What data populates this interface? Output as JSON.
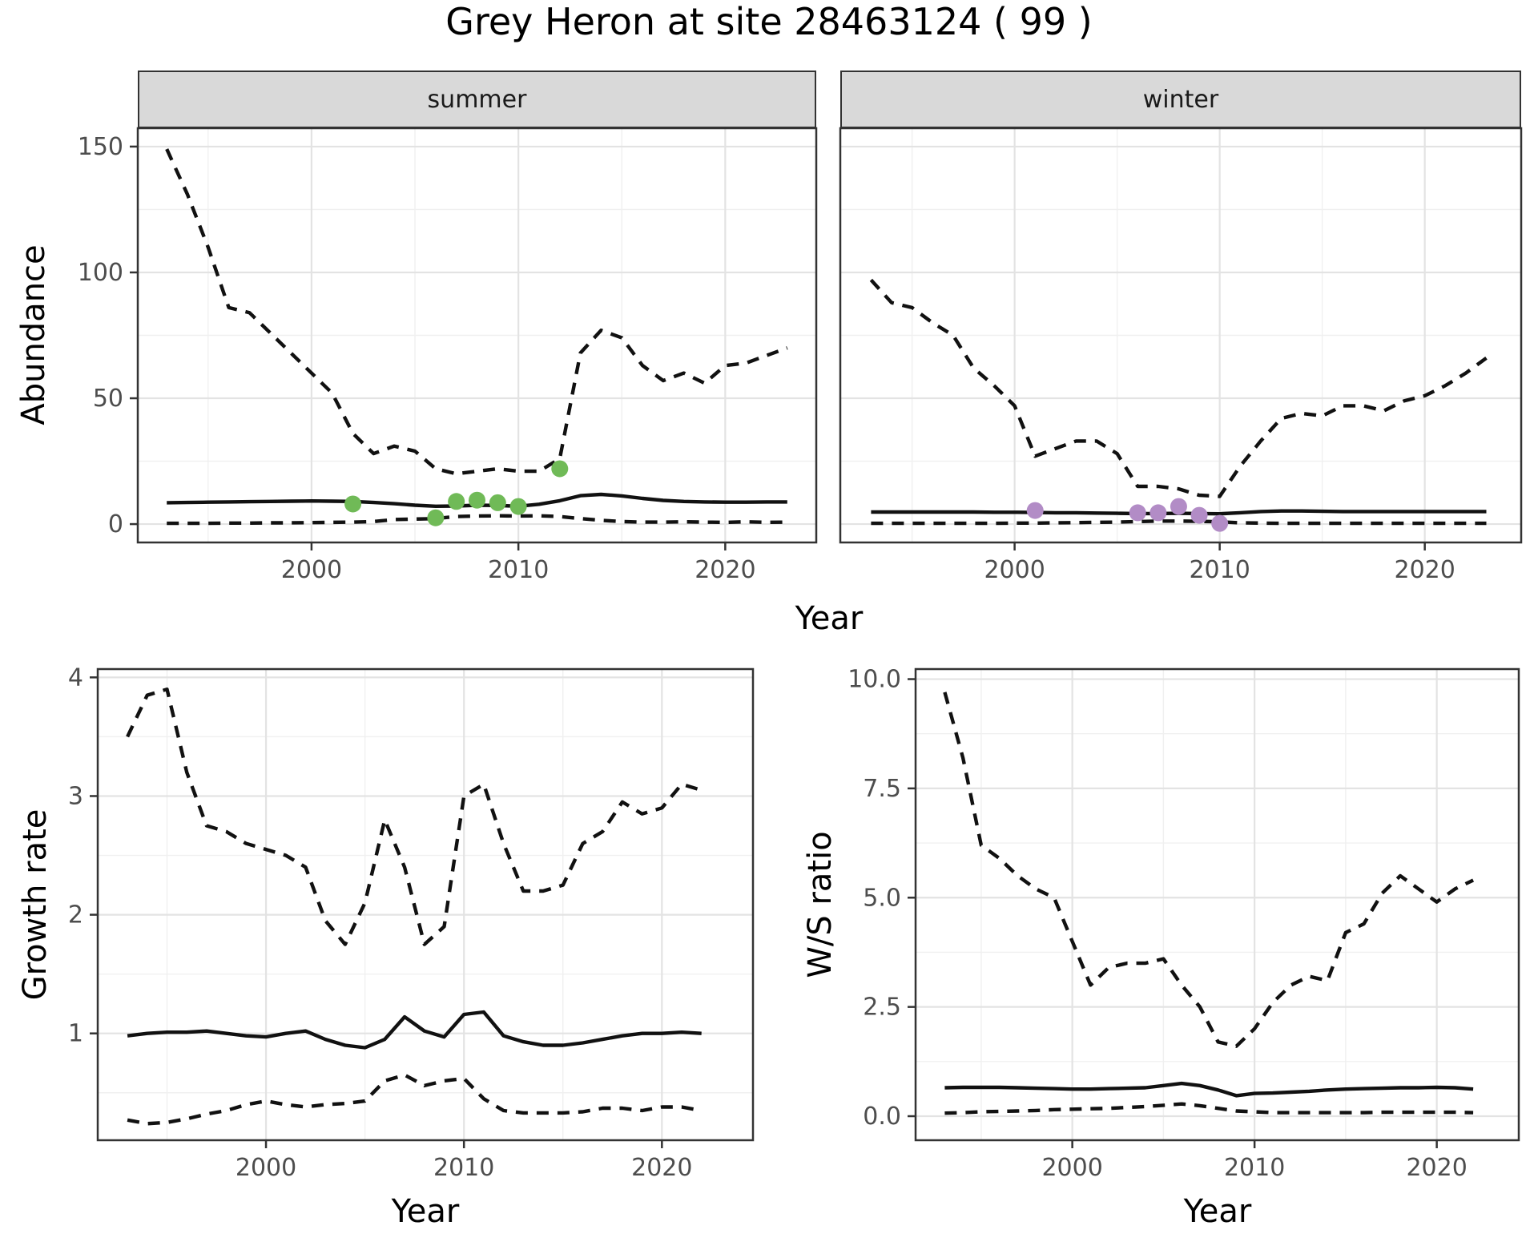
{
  "figure": {
    "title": "Grey Heron at site 28463124 ( 99 )",
    "top_xlabel": "Year",
    "line_color": "#111111",
    "grid_major_color": "#e3e3e3",
    "grid_minor_color": "#f0f0f0",
    "border_color": "#333333",
    "tick_label_color": "#4d4d4d",
    "strip_bg_color": "#d9d9d9",
    "point_color_summer": "#70ba57",
    "point_color_winter": "#b28cc6"
  },
  "chart_data": [
    {
      "id": "abundance-summer",
      "type": "line",
      "facet_label": "summer",
      "ylabel": "Abundance",
      "xlabel": "Year",
      "xlim": [
        1991.6,
        2024.4
      ],
      "ylim": [
        -7.3,
        157.3
      ],
      "xticks": [
        2000,
        2010,
        2020
      ],
      "xtick_labels": [
        "2000",
        "2010",
        "2020"
      ],
      "xminor": [
        1995,
        2005,
        2015
      ],
      "yticks": [
        0,
        50,
        100,
        150
      ],
      "ytick_labels": [
        "0",
        "50",
        "100",
        "150"
      ],
      "yminor": [
        25,
        75,
        125
      ],
      "x": [
        1993,
        1994,
        1995,
        1996,
        1997,
        1998,
        1999,
        2000,
        2001,
        2002,
        2003,
        2004,
        2005,
        2006,
        2007,
        2008,
        2009,
        2010,
        2011,
        2012,
        2013,
        2014,
        2015,
        2016,
        2017,
        2018,
        2019,
        2020,
        2021,
        2022,
        2023
      ],
      "series": [
        {
          "name": "upper-ci",
          "style": "dashed",
          "values": [
            149,
            131,
            110,
            86,
            84,
            76,
            68,
            60,
            52,
            36,
            28,
            31,
            29,
            22,
            20,
            21,
            22,
            21,
            21,
            26,
            68,
            77,
            74,
            63,
            57,
            60,
            56,
            63,
            64,
            67,
            70
          ]
        },
        {
          "name": "median",
          "style": "solid",
          "values": [
            8.5,
            8.6,
            8.7,
            8.8,
            8.9,
            9.0,
            9.1,
            9.2,
            9.1,
            9.0,
            8.6,
            8.1,
            7.5,
            7.1,
            7.2,
            7.5,
            7.4,
            7.1,
            7.9,
            9.3,
            11.3,
            11.8,
            11.2,
            10.2,
            9.4,
            9.0,
            8.8,
            8.7,
            8.7,
            8.8,
            8.8
          ]
        },
        {
          "name": "lower-ci",
          "style": "dashed",
          "values": [
            0.3,
            0.3,
            0.3,
            0.4,
            0.4,
            0.5,
            0.5,
            0.6,
            0.7,
            0.8,
            1.0,
            1.8,
            2.0,
            2.2,
            3.0,
            3.2,
            3.3,
            3.2,
            3.3,
            3.0,
            2.2,
            1.5,
            1.0,
            0.8,
            0.8,
            0.9,
            0.8,
            0.7,
            0.9,
            0.7,
            0.8
          ]
        }
      ],
      "points": {
        "name": "observed-counts-summer",
        "color": "#70ba57",
        "x": [
          2002,
          2006,
          2007,
          2008,
          2009,
          2010,
          2012
        ],
        "y": [
          8,
          2.5,
          9,
          9.5,
          8.5,
          7,
          22
        ]
      }
    },
    {
      "id": "abundance-winter",
      "type": "line",
      "facet_label": "winter",
      "ylabel": "Abundance",
      "xlabel": "Year",
      "xlim": [
        1991.5,
        2024.7
      ],
      "ylim": [
        -7.3,
        157.3
      ],
      "xticks": [
        2000,
        2010,
        2020
      ],
      "xtick_labels": [
        "2000",
        "2010",
        "2020"
      ],
      "xminor": [
        1995,
        2005,
        2015
      ],
      "yticks": [
        0,
        50,
        100,
        150
      ],
      "ytick_labels": [
        "0",
        "50",
        "100",
        "150"
      ],
      "yminor": [
        25,
        75,
        125
      ],
      "x": [
        1993,
        1994,
        1995,
        1996,
        1997,
        1998,
        1999,
        2000,
        2001,
        2002,
        2003,
        2004,
        2005,
        2006,
        2007,
        2008,
        2009,
        2010,
        2011,
        2012,
        2013,
        2014,
        2015,
        2016,
        2017,
        2018,
        2019,
        2020,
        2021,
        2022,
        2023
      ],
      "series": [
        {
          "name": "upper-ci",
          "style": "dashed",
          "values": [
            97,
            88,
            86,
            80,
            75,
            62,
            55,
            47,
            27,
            30,
            33,
            33,
            28,
            15,
            15,
            14,
            11.5,
            11,
            23,
            33,
            42,
            44,
            43,
            47,
            47,
            45,
            49,
            51,
            55,
            60,
            66
          ]
        },
        {
          "name": "median",
          "style": "solid",
          "values": [
            4.8,
            4.8,
            4.8,
            4.8,
            4.8,
            4.8,
            4.7,
            4.7,
            4.6,
            4.5,
            4.5,
            4.4,
            4.3,
            4.2,
            4.2,
            4.3,
            4.2,
            4.1,
            4.5,
            5.0,
            5.2,
            5.2,
            5.1,
            5.0,
            5.0,
            5.0,
            5.0,
            5.0,
            5.0,
            5.0,
            5.0
          ]
        },
        {
          "name": "lower-ci",
          "style": "dashed",
          "values": [
            0.3,
            0.3,
            0.3,
            0.3,
            0.3,
            0.3,
            0.3,
            0.4,
            0.4,
            0.5,
            0.6,
            0.7,
            0.8,
            1.0,
            1.2,
            1.2,
            1.1,
            0.9,
            0.5,
            0.4,
            0.3,
            0.3,
            0.3,
            0.3,
            0.3,
            0.3,
            0.3,
            0.3,
            0.3,
            0.3,
            0.3
          ]
        }
      ],
      "points": {
        "name": "observed-counts-winter",
        "color": "#b28cc6",
        "x": [
          2001,
          2006,
          2007,
          2008,
          2009,
          2010
        ],
        "y": [
          5.4,
          4.5,
          4.5,
          7,
          3.5,
          0.3
        ]
      }
    },
    {
      "id": "growth-rate",
      "type": "line",
      "facet_label": "",
      "ylabel": "Growth rate",
      "xlabel": "Year",
      "xlim": [
        1991.5,
        2024.6
      ],
      "ylim": [
        0.1,
        4.07
      ],
      "xticks": [
        2000,
        2010,
        2020
      ],
      "xtick_labels": [
        "2000",
        "2010",
        "2020"
      ],
      "xminor": [
        1995,
        2005,
        2015
      ],
      "yticks": [
        1,
        2,
        3,
        4
      ],
      "ytick_labels": [
        "1",
        "2",
        "3",
        "4"
      ],
      "yminor": [
        0.5,
        1.5,
        2.5,
        3.5
      ],
      "x": [
        1993,
        1994,
        1995,
        1996,
        1997,
        1998,
        1999,
        2000,
        2001,
        2002,
        2003,
        2004,
        2005,
        2006,
        2007,
        2008,
        2009,
        2010,
        2011,
        2012,
        2013,
        2014,
        2015,
        2016,
        2017,
        2018,
        2019,
        2020,
        2021,
        2022
      ],
      "series": [
        {
          "name": "upper-ci",
          "style": "dashed",
          "values": [
            3.5,
            3.85,
            3.9,
            3.2,
            2.75,
            2.7,
            2.6,
            2.55,
            2.5,
            2.4,
            1.95,
            1.75,
            2.1,
            2.8,
            2.4,
            1.75,
            1.9,
            3.0,
            3.1,
            2.6,
            2.2,
            2.2,
            2.25,
            2.6,
            2.7,
            2.95,
            2.85,
            2.9,
            3.1,
            3.05
          ]
        },
        {
          "name": "median",
          "style": "solid",
          "values": [
            0.98,
            1.0,
            1.01,
            1.01,
            1.02,
            1.0,
            0.98,
            0.97,
            1.0,
            1.02,
            0.95,
            0.9,
            0.88,
            0.95,
            1.14,
            1.02,
            0.97,
            1.16,
            1.18,
            0.98,
            0.93,
            0.9,
            0.9,
            0.92,
            0.95,
            0.98,
            1.0,
            1.0,
            1.01,
            1.0
          ]
        },
        {
          "name": "lower-ci",
          "style": "dashed",
          "values": [
            0.27,
            0.24,
            0.25,
            0.28,
            0.32,
            0.35,
            0.4,
            0.43,
            0.4,
            0.38,
            0.4,
            0.41,
            0.43,
            0.6,
            0.65,
            0.56,
            0.6,
            0.62,
            0.45,
            0.35,
            0.33,
            0.33,
            0.33,
            0.34,
            0.37,
            0.37,
            0.35,
            0.38,
            0.38,
            0.35
          ]
        }
      ]
    },
    {
      "id": "winter-summer-ratio",
      "type": "line",
      "facet_label": "",
      "ylabel": "W/S ratio",
      "xlabel": "Year",
      "xlim": [
        1991.4,
        2024.5
      ],
      "ylim": [
        -0.55,
        10.23
      ],
      "xticks": [
        2000,
        2010,
        2020
      ],
      "xtick_labels": [
        "2000",
        "2010",
        "2020"
      ],
      "xminor": [
        1995,
        2005,
        2015
      ],
      "yticks": [
        0,
        2.5,
        5,
        7.5,
        10
      ],
      "ytick_labels": [
        "0.0",
        "2.5",
        "5.0",
        "7.5",
        "10.0"
      ],
      "yminor": [
        1.25,
        3.75,
        6.25,
        8.75
      ],
      "x": [
        1993,
        1994,
        1995,
        1996,
        1997,
        1998,
        1999,
        2000,
        2001,
        2002,
        2003,
        2004,
        2005,
        2006,
        2007,
        2008,
        2009,
        2010,
        2011,
        2012,
        2013,
        2014,
        2015,
        2016,
        2017,
        2018,
        2019,
        2020,
        2021,
        2022
      ],
      "series": [
        {
          "name": "upper-ci",
          "style": "dashed",
          "values": [
            9.7,
            8.2,
            6.2,
            5.9,
            5.5,
            5.2,
            5.0,
            4.0,
            3.0,
            3.4,
            3.5,
            3.5,
            3.6,
            3.0,
            2.5,
            1.7,
            1.6,
            2.0,
            2.6,
            3.0,
            3.2,
            3.1,
            4.2,
            4.4,
            5.1,
            5.5,
            5.2,
            4.9,
            5.2,
            5.4
          ]
        },
        {
          "name": "median",
          "style": "solid",
          "values": [
            0.65,
            0.66,
            0.66,
            0.66,
            0.65,
            0.64,
            0.63,
            0.62,
            0.62,
            0.63,
            0.64,
            0.65,
            0.7,
            0.75,
            0.7,
            0.6,
            0.47,
            0.52,
            0.53,
            0.55,
            0.57,
            0.6,
            0.62,
            0.63,
            0.64,
            0.65,
            0.65,
            0.66,
            0.65,
            0.62
          ]
        },
        {
          "name": "lower-ci",
          "style": "dashed",
          "values": [
            0.07,
            0.08,
            0.1,
            0.11,
            0.12,
            0.13,
            0.15,
            0.16,
            0.17,
            0.18,
            0.2,
            0.22,
            0.25,
            0.28,
            0.24,
            0.18,
            0.12,
            0.1,
            0.08,
            0.08,
            0.08,
            0.08,
            0.08,
            0.08,
            0.09,
            0.09,
            0.09,
            0.09,
            0.09,
            0.08
          ]
        }
      ]
    }
  ]
}
